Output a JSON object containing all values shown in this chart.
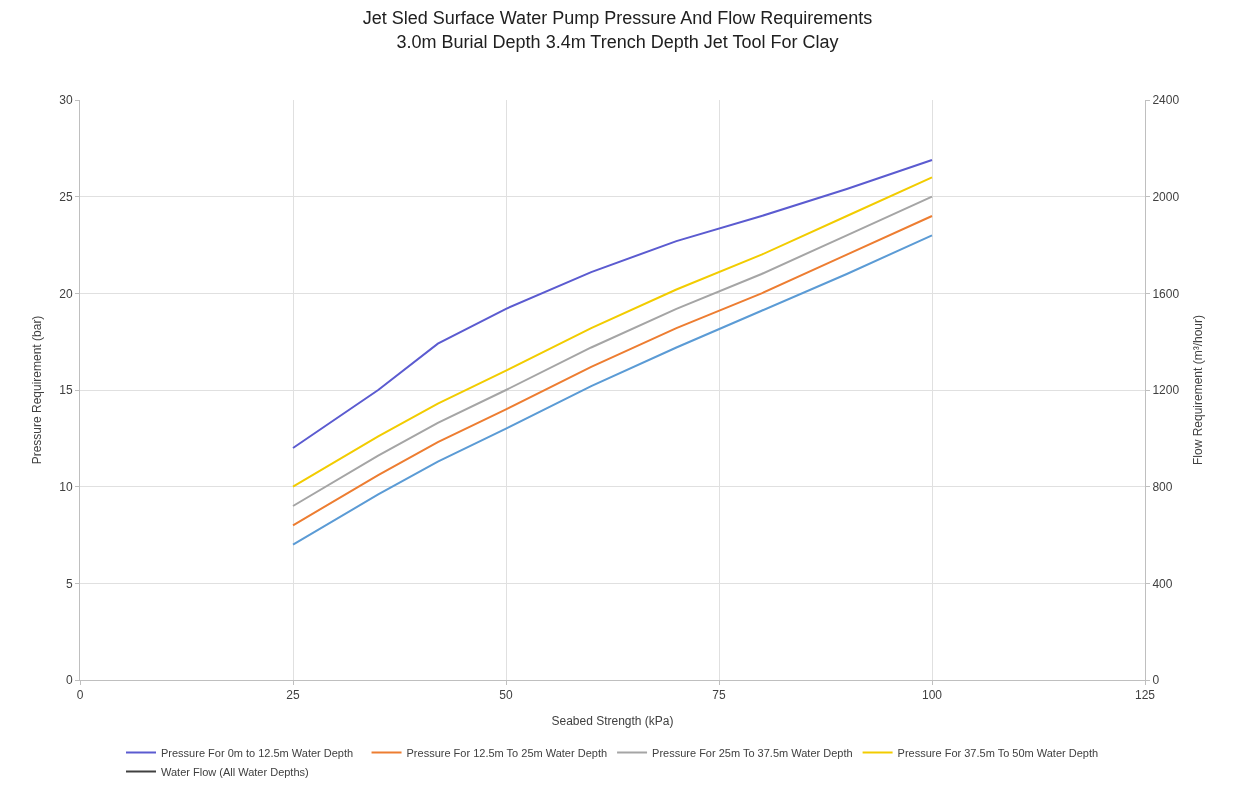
{
  "chart_data": {
    "type": "line",
    "title": "Jet Sled Surface Water Pump Pressure And Flow Requirements\n3.0m Burial Depth 3.4m Trench Depth Jet Tool For Clay",
    "xlabel": "Seabed Strength (kPa)",
    "ylabel": "Pressure Requirement (bar)",
    "y2label": "Flow Requirement (m³/hour)",
    "x": [
      25,
      35,
      42,
      50,
      60,
      70,
      80,
      90,
      100
    ],
    "series": [
      {
        "name": "Pressure For 0m to 12.5m Water Depth",
        "color": "#5b5bd0",
        "values": [
          12,
          15,
          17.4,
          19.2,
          21.1,
          22.7,
          24.0,
          25.4,
          26.9
        ]
      },
      {
        "name": "Pressure For 12.5m To 25m Water Depth",
        "color": "#ed7d31",
        "values": [
          8,
          10.6,
          12.3,
          14,
          16.2,
          18.2,
          20,
          22,
          24
        ]
      },
      {
        "name": "Pressure For 25m To 37.5m Water Depth",
        "color": "#a5a5a5",
        "values": [
          9,
          11.6,
          13.3,
          15,
          17.2,
          19.2,
          21,
          23,
          25
        ]
      },
      {
        "name": "Pressure For 37.5m To 50m Water Depth",
        "color": "#f2cc00",
        "values": [
          10,
          12.6,
          14.3,
          16,
          18.2,
          20.2,
          22,
          24,
          26
        ]
      },
      {
        "name": "Water Flow (All Water Depths)",
        "color": "#404040",
        "axis": "y2",
        "values": [
          null,
          null,
          null,
          null,
          null,
          null,
          null,
          null,
          null
        ]
      },
      {
        "name": null,
        "color": "#5b9bd5",
        "values": [
          7,
          9.6,
          11.3,
          13,
          15.2,
          17.2,
          19.1,
          21,
          23
        ]
      }
    ],
    "xlim": [
      0,
      125
    ],
    "xticks": [
      0,
      25,
      50,
      75,
      100,
      125
    ],
    "ylim": [
      0,
      30
    ],
    "yticks": [
      0,
      5,
      10,
      15,
      20,
      25,
      30
    ],
    "y2lim": [
      0,
      2400
    ],
    "y2ticks": [
      0,
      400,
      800,
      1200,
      1600,
      2000,
      2400
    ],
    "grid": true,
    "legend": "bottom",
    "line_style": "solid",
    "marker": "none"
  }
}
